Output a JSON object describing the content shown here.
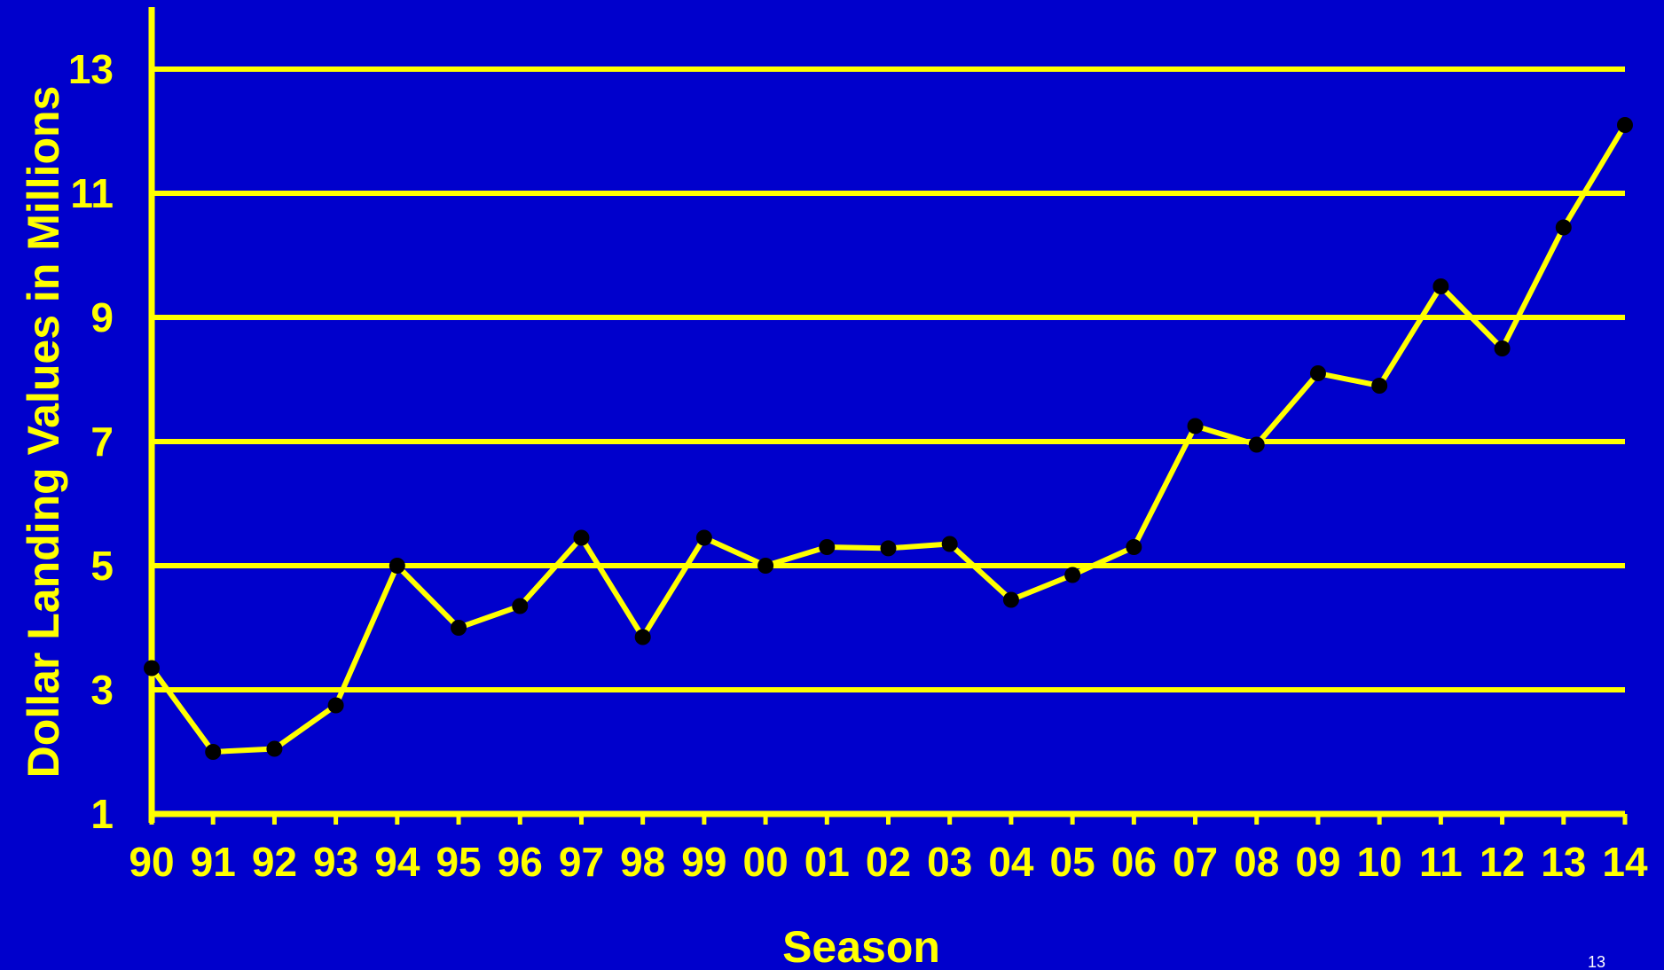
{
  "colors": {
    "background": "#0000cc",
    "line": "#ffff00",
    "marker": "#000000",
    "text": "#ffff00"
  },
  "page_number": "13",
  "chart_data": {
    "type": "line",
    "title": "",
    "xlabel": "Season",
    "ylabel": "Dollar Landing Values in Millions",
    "categories": [
      "90",
      "91",
      "92",
      "93",
      "94",
      "95",
      "96",
      "97",
      "98",
      "99",
      "00",
      "01",
      "02",
      "03",
      "04",
      "05",
      "06",
      "07",
      "08",
      "09",
      "10",
      "11",
      "12",
      "13",
      "14"
    ],
    "series": [
      {
        "values": [
          3.35,
          2.0,
          2.05,
          2.75,
          5.0,
          4.0,
          4.35,
          5.45,
          3.85,
          5.45,
          5.0,
          5.3,
          5.28,
          5.35,
          4.45,
          4.85,
          5.3,
          7.25,
          6.95,
          8.1,
          7.9,
          9.5,
          8.5,
          10.45,
          12.1
        ]
      }
    ],
    "ylim": [
      1,
      13
    ],
    "yticks": [
      "1",
      "3",
      "5",
      "7",
      "9",
      "11",
      "13"
    ],
    "grid": true
  }
}
